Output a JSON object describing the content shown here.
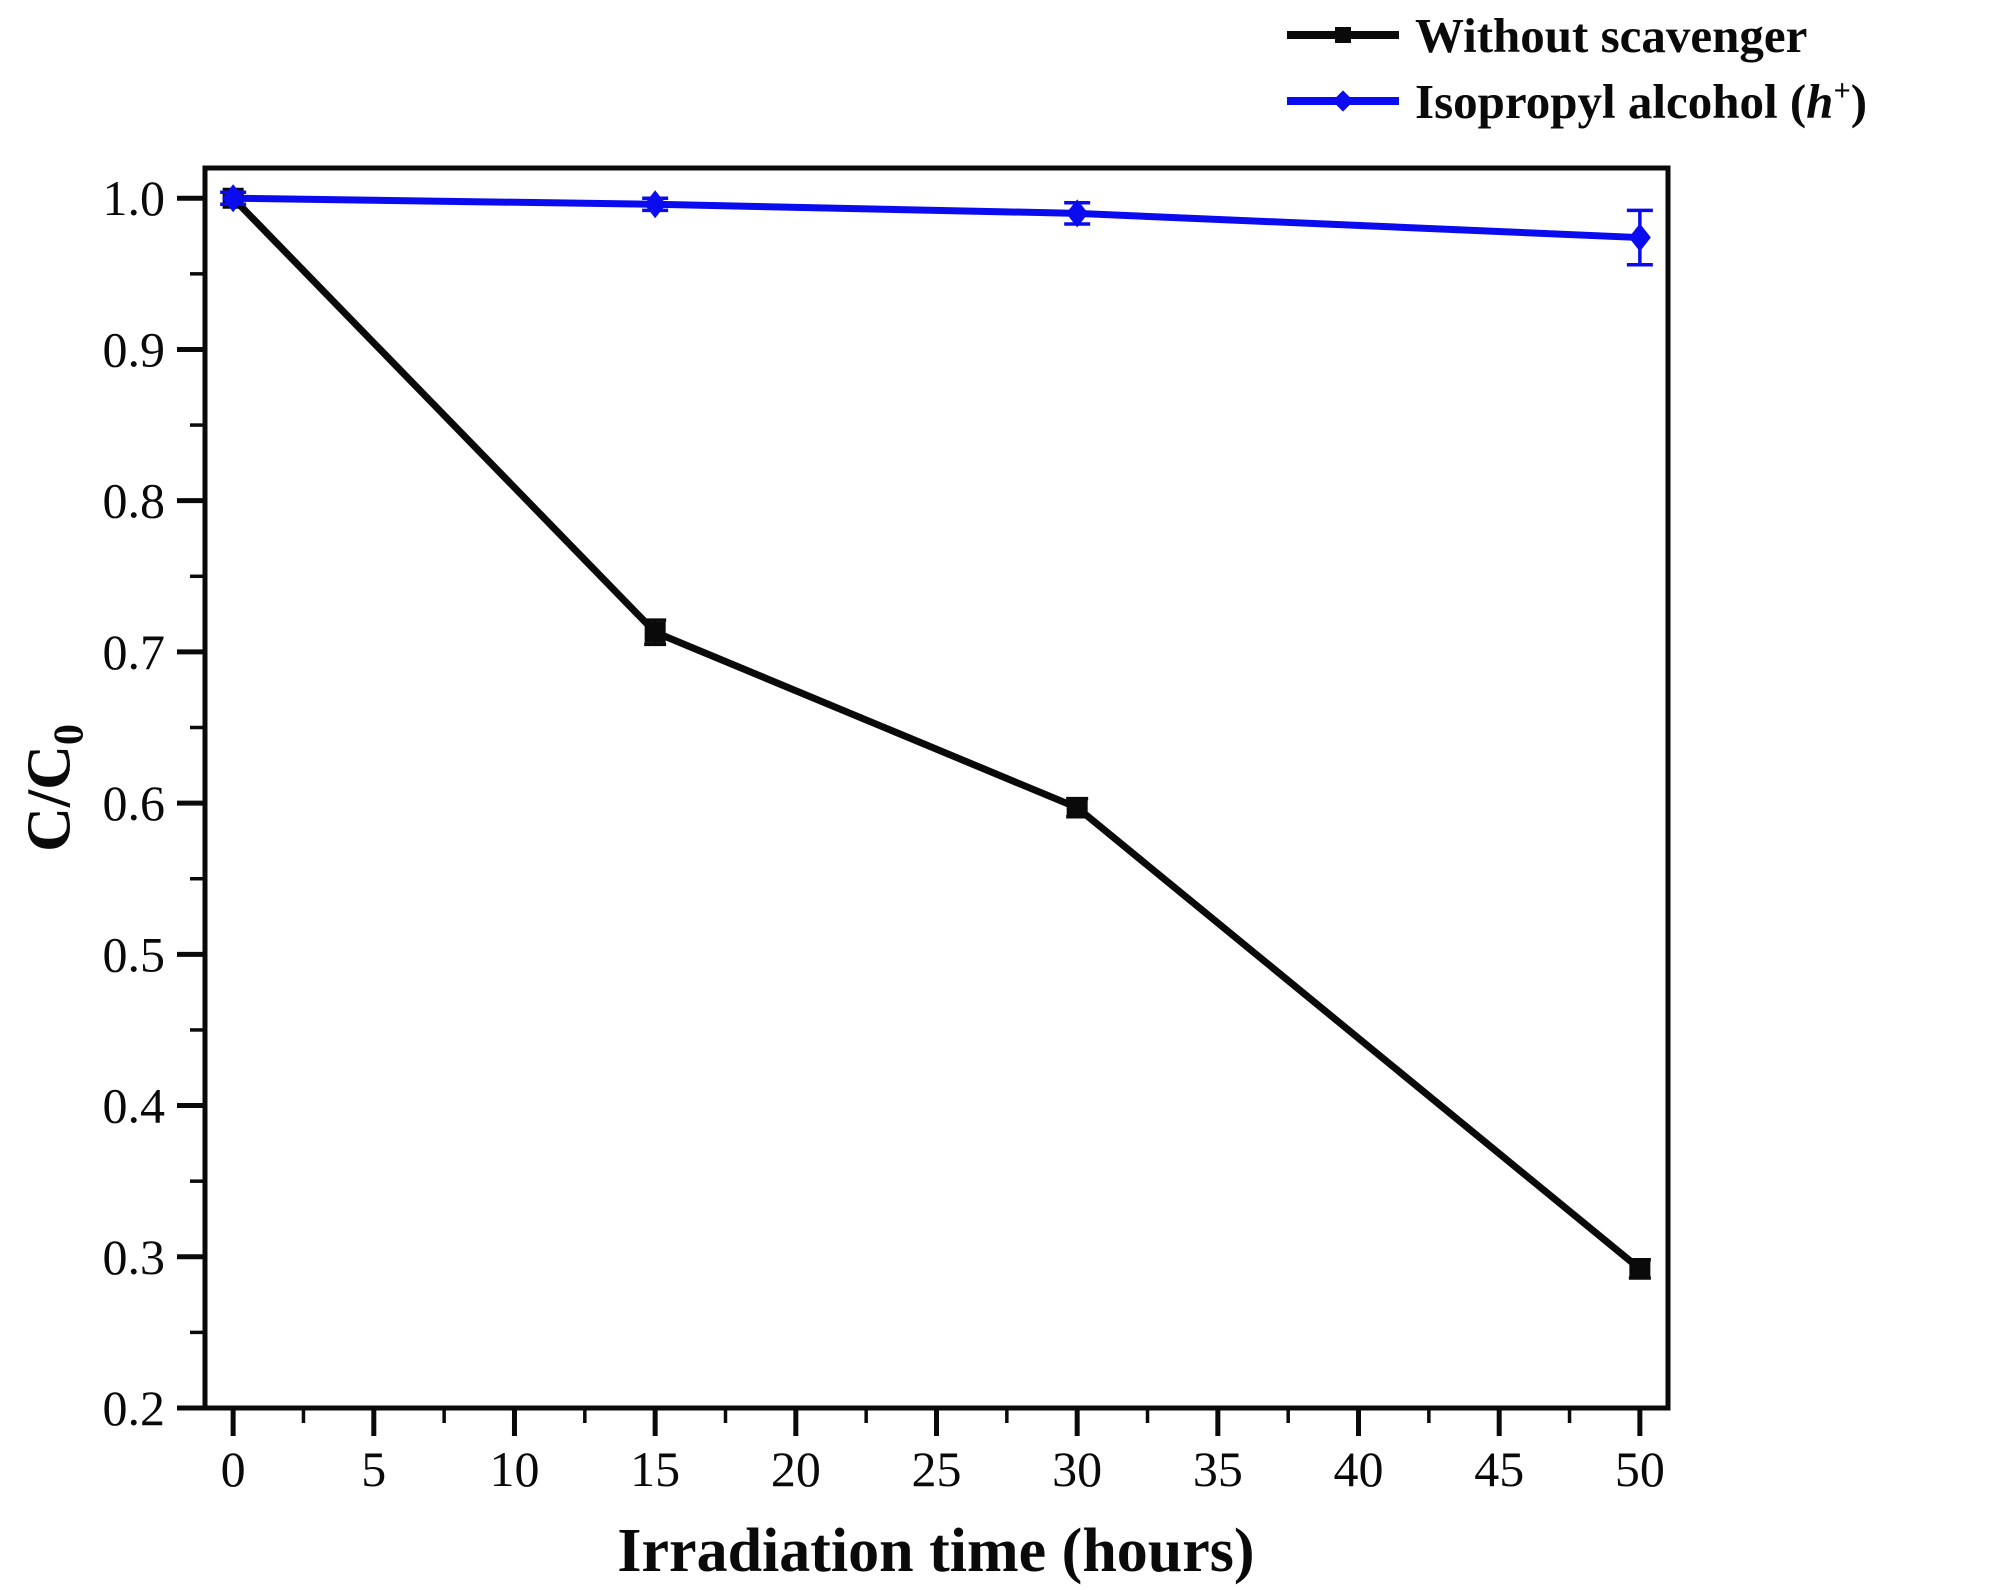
{
  "legend": {
    "items": [
      {
        "label": "Without scavenger",
        "color": "#0a0a0a",
        "marker": "square"
      },
      {
        "label_prefix": "Isopropyl alcohol (",
        "label_italic": "h",
        "label_sup": "+",
        "label_suffix": ")",
        "color": "#0b0bef",
        "marker": "diamond"
      }
    ]
  },
  "axes": {
    "x_title": "Irradiation time (hours)",
    "y_title_main": "C/C",
    "y_title_sub": "0"
  },
  "chart_data": {
    "type": "line",
    "title": "",
    "xlabel": "Irradiation time (hours)",
    "ylabel": "C/C0",
    "xlim": [
      -1,
      51
    ],
    "ylim": [
      0.2,
      1.02
    ],
    "x_major_ticks": [
      0,
      5,
      10,
      15,
      20,
      25,
      30,
      35,
      40,
      45,
      50
    ],
    "x_minor_ticks": [
      2.5,
      7.5,
      12.5,
      17.5,
      22.5,
      27.5,
      32.5,
      37.5,
      42.5,
      47.5
    ],
    "y_major_ticks": [
      1.0,
      0.9,
      0.8,
      0.7,
      0.6,
      0.5,
      0.4,
      0.3,
      0.2
    ],
    "y_minor_ticks": [
      0.95,
      0.85,
      0.75,
      0.65,
      0.55,
      0.45,
      0.35,
      0.25
    ],
    "y_tick_decimals": 1,
    "grid": false,
    "legend_position": "top-right-outside",
    "axis_color": "#0a0a0a",
    "series": [
      {
        "name": "Without scavenger",
        "color": "#0a0a0a",
        "marker": "square",
        "x": [
          0,
          15,
          30,
          50
        ],
        "y": [
          1.0,
          0.713,
          0.597,
          0.292
        ],
        "yerr": [
          0.004,
          0.008,
          0.006,
          0.006
        ]
      },
      {
        "name": "Isopropyl alcohol (h+)",
        "color": "#0b0bef",
        "marker": "diamond",
        "x": [
          0,
          15,
          30,
          50
        ],
        "y": [
          1.0,
          0.996,
          0.99,
          0.974
        ],
        "yerr": [
          0.004,
          0.004,
          0.007,
          0.018
        ]
      }
    ]
  }
}
